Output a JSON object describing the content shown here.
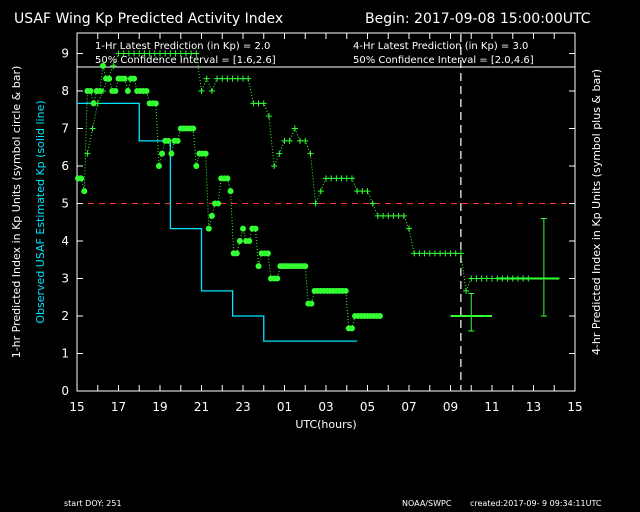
{
  "header": {
    "title": "USAF Wing Kp Predicted Activity Index",
    "begin": "Begin: 2017-09-08 15:00:00UTC",
    "latest_1hr": "1-Hr Latest Prediction (in Kp) = 2.0",
    "ci_1hr": "50% Confidence Interval  = [1.6,2.6]",
    "latest_4hr": "4-Hr Latest Prediction (in Kp) = 3.0",
    "ci_4hr": "50% Confidence Interval  = [2.0,4.6]"
  },
  "axes": {
    "xlabel": "UTC(hours)",
    "ylabel_left_1": "1-hr Predicted Index in Kp Units (symbol circle & bar)",
    "ylabel_left_2": "Observed USAF Estimated Kp (solid line)",
    "ylabel_right": "4-hr Predicted Index in Kp Units (symbol plus & bar)"
  },
  "footer": {
    "start_doy": "start DOY:  251",
    "credit": "NOAA/SWPC",
    "created": "created:2017-09- 9 09:34:11UTC"
  },
  "colors": {
    "background": "#000000",
    "text": "#ffffff",
    "predicted": "#33ff33",
    "observed": "#00e5ff",
    "threshold": "#ff3333"
  },
  "chart_data": {
    "type": "line",
    "x_unit": "hours since 2017-09-08 15:00 UTC",
    "xlim": [
      0,
      48
    ],
    "ylim": [
      0,
      9.5
    ],
    "xticks": [
      0,
      2,
      4,
      6,
      8,
      10,
      12,
      14,
      16,
      18,
      20,
      22,
      24,
      26,
      28,
      30,
      32,
      34,
      36,
      38,
      40,
      42,
      44,
      46,
      48
    ],
    "xtick_labels": [
      "15",
      "",
      "17",
      "",
      "19",
      "",
      "21",
      "",
      "23",
      "",
      "01",
      "",
      "03",
      "",
      "05",
      "",
      "07",
      "",
      "09",
      "",
      "11",
      "",
      "13",
      "",
      "15"
    ],
    "yticks": [
      0,
      1,
      2,
      3,
      4,
      5,
      6,
      7,
      8,
      9
    ],
    "threshold": 5,
    "now_x": 37.0,
    "observed_kp": {
      "x": [
        0,
        3,
        3,
        6,
        6,
        9,
        9,
        12,
        12,
        15,
        15,
        18,
        18,
        21,
        21,
        24,
        24,
        27
      ],
      "y": [
        7.67,
        7.67,
        7.67,
        7.67,
        6.67,
        6.67,
        4.33,
        4.33,
        2.67,
        2.67,
        2.0,
        2.0,
        1.33,
        1.33,
        1.33,
        1.33,
        1.33,
        1.33
      ]
    },
    "predicted_1hr": {
      "x": [
        0.1,
        0.4,
        0.7,
        1.0,
        1.3,
        1.6,
        1.9,
        2.2,
        2.5,
        2.8,
        3.1,
        3.4,
        3.7,
        4.0,
        4.3,
        4.6,
        4.9,
        5.2,
        5.5,
        5.8,
        6.1,
        6.4,
        6.7,
        7.0,
        7.3,
        7.6,
        7.9,
        8.2,
        8.5,
        8.8,
        9.1,
        9.4,
        9.7,
        10.0,
        10.3,
        10.6,
        10.9,
        11.2,
        11.5,
        11.8,
        12.1,
        12.4,
        12.7,
        13.0,
        13.3,
        13.6,
        13.9,
        14.2,
        14.5,
        14.8,
        15.1,
        15.4,
        15.7,
        16.0,
        16.3,
        16.6,
        16.9,
        17.2,
        17.5,
        17.8,
        18.1,
        18.4,
        18.7,
        19.0,
        19.3,
        19.6,
        19.9,
        20.2,
        20.5,
        20.8,
        21.1,
        21.4,
        21.7,
        22.0,
        22.3,
        22.6,
        22.9,
        23.2,
        23.5,
        23.8,
        24.1,
        24.4,
        24.7,
        25.0,
        25.3,
        25.6,
        25.9,
        26.2,
        26.5,
        26.8,
        27.1,
        27.4,
        27.7,
        28.0,
        28.3,
        28.6,
        28.9,
        29.2
      ],
      "y": [
        5.67,
        5.67,
        5.33,
        8.0,
        8.0,
        7.67,
        8.0,
        8.0,
        8.67,
        8.33,
        8.33,
        8.0,
        8.0,
        8.33,
        8.33,
        8.33,
        8.0,
        8.33,
        8.33,
        8.0,
        8.0,
        8.0,
        8.0,
        7.67,
        7.67,
        7.67,
        6.0,
        6.33,
        6.67,
        6.67,
        6.33,
        6.67,
        6.67,
        7.0,
        7.0,
        7.0,
        7.0,
        7.0,
        6.0,
        6.33,
        6.33,
        6.33,
        4.33,
        4.67,
        5.0,
        5.0,
        5.67,
        5.67,
        5.67,
        5.33,
        3.67,
        3.67,
        4.0,
        4.33,
        4.0,
        4.0,
        4.33,
        4.33,
        3.33,
        3.67,
        3.67,
        3.67,
        3.0,
        3.0,
        3.0,
        3.33,
        3.33,
        3.33,
        3.33,
        3.33,
        3.33,
        3.33,
        3.33,
        3.33,
        2.33,
        2.33,
        2.67,
        2.67,
        2.67,
        2.67,
        2.67,
        2.67,
        2.67,
        2.67,
        2.67,
        2.67,
        2.67,
        1.67,
        1.67,
        2.0,
        2.0,
        2.0,
        2.0,
        2.0,
        2.0,
        2.0,
        2.0,
        2.0
      ],
      "latest": {
        "x": 38.0,
        "y": 2.0,
        "lo": 1.6,
        "hi": 2.6
      }
    },
    "predicted_4hr": {
      "x": [
        1.0,
        1.5,
        2.0,
        2.5,
        3.0,
        3.5,
        4.0,
        4.5,
        5.0,
        5.5,
        6.0,
        6.5,
        7.0,
        7.5,
        8.0,
        8.5,
        9.0,
        9.5,
        10.0,
        10.5,
        11.0,
        11.5,
        12.0,
        12.5,
        13.0,
        13.5,
        14.0,
        14.5,
        15.0,
        15.5,
        16.0,
        16.5,
        17.0,
        17.5,
        18.0,
        18.5,
        19.0,
        19.5,
        20.0,
        20.5,
        21.0,
        21.5,
        22.0,
        22.5,
        23.0,
        23.5,
        24.0,
        24.5,
        25.0,
        25.5,
        26.0,
        26.5,
        27.0,
        27.5,
        28.0,
        28.5,
        29.0,
        29.5,
        30.0,
        30.5,
        31.0,
        31.5,
        32.0,
        32.5,
        33.0,
        33.5,
        34.0,
        34.5,
        35.0,
        35.5,
        36.0,
        36.5,
        37.0,
        37.5,
        38.0,
        38.5,
        39.0,
        39.5,
        40.0,
        40.5,
        41.0,
        41.5,
        42.0,
        42.5,
        43.0,
        43.5
      ],
      "y": [
        6.33,
        7.0,
        7.67,
        8.0,
        8.33,
        8.67,
        9.0,
        9.0,
        9.0,
        9.0,
        9.0,
        9.0,
        9.0,
        9.0,
        9.0,
        9.0,
        9.0,
        9.0,
        9.0,
        9.0,
        9.0,
        9.0,
        8.0,
        8.33,
        8.0,
        8.33,
        8.33,
        8.33,
        8.33,
        8.33,
        8.33,
        8.33,
        7.67,
        7.67,
        7.67,
        7.33,
        6.0,
        6.33,
        6.67,
        6.67,
        7.0,
        6.67,
        6.67,
        6.33,
        5.0,
        5.33,
        5.67,
        5.67,
        5.67,
        5.67,
        5.67,
        5.67,
        5.33,
        5.33,
        5.33,
        5.0,
        4.67,
        4.67,
        4.67,
        4.67,
        4.67,
        4.67,
        4.33,
        3.67,
        3.67,
        3.67,
        3.67,
        3.67,
        3.67,
        3.67,
        3.67,
        3.67,
        3.67,
        2.67,
        3.0,
        3.0,
        3.0,
        3.0,
        3.0,
        3.0,
        3.0,
        3.0,
        3.0,
        3.0,
        3.0,
        3.0
      ],
      "latest": {
        "x": 42.0,
        "y": 3.0,
        "lo": 2.0,
        "hi": 4.6
      }
    }
  }
}
